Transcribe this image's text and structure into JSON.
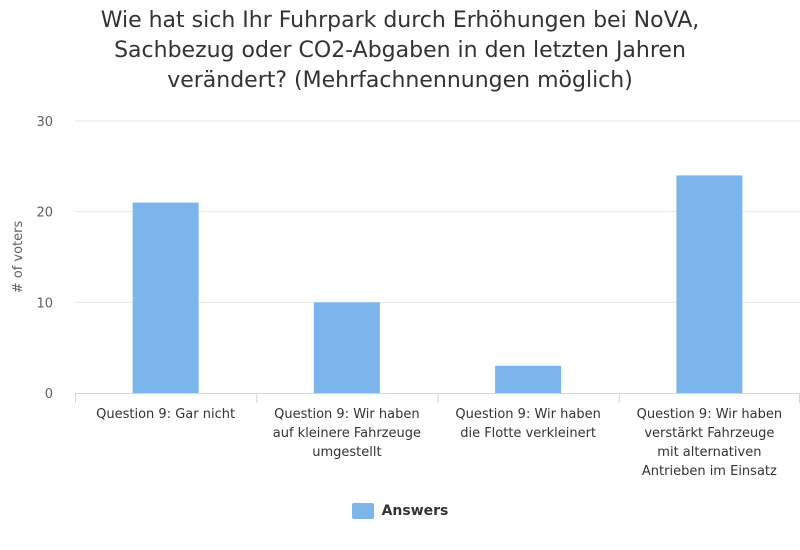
{
  "chart_data": {
    "type": "bar",
    "title_lines": [
      "Wie hat sich Ihr Fuhrpark durch Erhöhungen bei NoVA,",
      "Sachbezug oder CO2-Abgaben in den letzten Jahren",
      "verändert? (Mehrfachnennungen möglich)"
    ],
    "categories": [
      [
        "Question 9: Gar nicht"
      ],
      [
        "Question 9: Wir haben",
        "auf kleinere Fahrzeuge",
        "umgestellt"
      ],
      [
        "Question 9: Wir haben",
        "die Flotte verkleinert"
      ],
      [
        "Question 9: Wir haben",
        "verstärkt Fahrzeuge",
        "mit alternativen",
        "Antrieben im Einsatz"
      ]
    ],
    "series": [
      {
        "name": "Answers",
        "values": [
          21,
          10,
          3,
          24
        ]
      }
    ],
    "ylabel": "# of voters",
    "ylim": [
      0,
      30
    ],
    "yticks": [
      0,
      10,
      20,
      30
    ],
    "grid": true,
    "legend_position": "bottom-center",
    "colors": {
      "bar": "#7cb5ec",
      "grid": "#e6e6e6",
      "axis": "#ccd6eb"
    }
  }
}
